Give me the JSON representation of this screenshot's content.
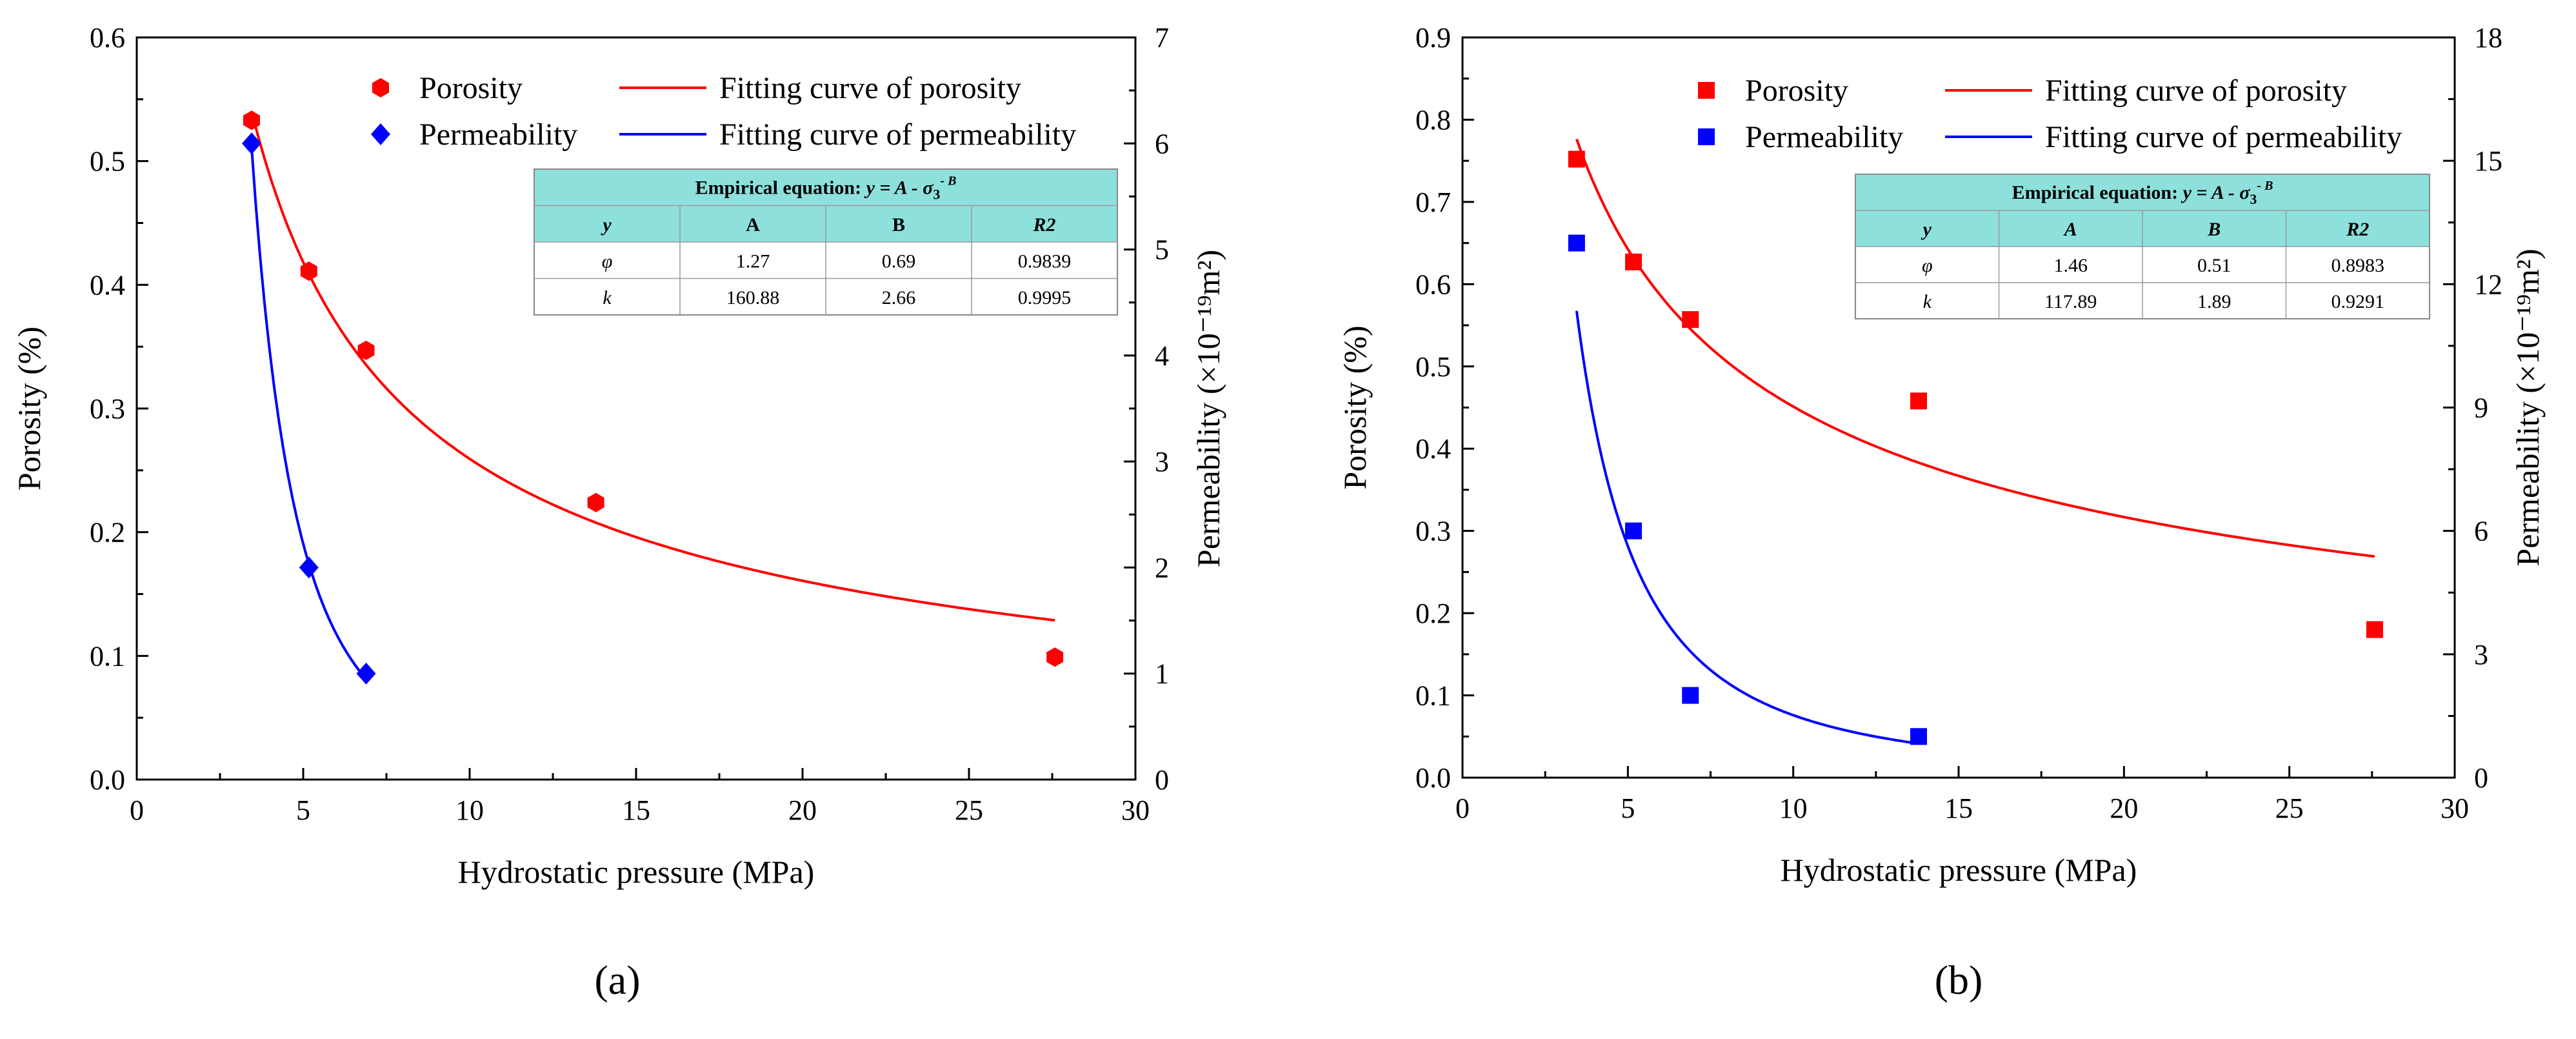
{
  "chart_data": [
    {
      "type": "scatter",
      "panel": "a",
      "panel_label": "(a)",
      "xlabel": "Hydrostatic pressure (MPa)",
      "ylabel": "Porosity (%)",
      "y2label": "Permeability (×10⁻¹⁹m²)",
      "xlim": [
        0,
        30
      ],
      "ylim": [
        0,
        0.6
      ],
      "y2lim": [
        0,
        7
      ],
      "xticks": [
        "0",
        "5",
        "10",
        "15",
        "20",
        "25",
        "30"
      ],
      "yticks": [
        "0.0",
        "0.1",
        "0.2",
        "0.3",
        "0.4",
        "0.5",
        "0.6"
      ],
      "y2ticks": [
        "0",
        "1",
        "2",
        "3",
        "4",
        "5",
        "6",
        "7"
      ],
      "legend": {
        "porosity_points": "Porosity",
        "permeability_points": "Permeability",
        "porosity_curve": "Fitting curve of porosity",
        "permeability_curve": "Fitting curve of permeability"
      },
      "colors": {
        "porosity": "#ff0000",
        "permeability": "#0000ff",
        "table_bg": "#8ee0dc"
      },
      "markers": {
        "porosity": "hexagon",
        "permeability": "diamond"
      },
      "series": [
        {
          "name": "Porosity",
          "axis": "left",
          "x": [
            3.45,
            5.17,
            6.89,
            13.79,
            27.58
          ],
          "y": [
            0.533,
            0.411,
            0.347,
            0.224,
            0.099
          ]
        },
        {
          "name": "Permeability",
          "axis": "right",
          "x": [
            3.45,
            5.17,
            6.89
          ],
          "y": [
            6.0,
            2.0,
            1.0
          ]
        }
      ],
      "fits": [
        {
          "name": "Fitting curve of porosity",
          "axis": "left",
          "A": 1.27,
          "B": 0.69,
          "x_range": [
            3.45,
            27.58
          ]
        },
        {
          "name": "Fitting curve of permeability",
          "axis": "right",
          "A": 160.88,
          "B": 2.66,
          "x_range": [
            3.45,
            6.89
          ]
        }
      ],
      "table": {
        "title_prefix": "Empirical equation: ",
        "title_eq": "y = A  -  σ",
        "title_sub": "3",
        "title_sup": "- B",
        "headers": [
          "y",
          "A",
          "B",
          "R2"
        ],
        "rows": [
          [
            "φ",
            "1.27",
            "0.69",
            "0.9839"
          ],
          [
            "k",
            "160.88",
            "2.66",
            "0.9995"
          ]
        ]
      }
    },
    {
      "type": "scatter",
      "panel": "b",
      "panel_label": "(b)",
      "xlabel": "Hydrostatic pressure (MPa)",
      "ylabel": "Porosity (%)",
      "y2label": "Permeability (×10⁻¹⁹m²)",
      "xlim": [
        0,
        30
      ],
      "ylim": [
        0,
        0.9
      ],
      "y2lim": [
        0,
        18
      ],
      "xticks": [
        "0",
        "5",
        "10",
        "15",
        "20",
        "25",
        "30"
      ],
      "yticks": [
        "0.0",
        "0.1",
        "0.2",
        "0.3",
        "0.4",
        "0.5",
        "0.6",
        "0.7",
        "0.8",
        "0.9"
      ],
      "y2ticks": [
        "0",
        "3",
        "6",
        "9",
        "12",
        "15",
        "18"
      ],
      "legend": {
        "porosity_points": "Porosity",
        "permeability_points": "Permeability",
        "porosity_curve": "Fitting curve of porosity",
        "permeability_curve": "Fitting curve of permeability"
      },
      "colors": {
        "porosity": "#ff0000",
        "permeability": "#0000ff",
        "table_bg": "#8ee0dc"
      },
      "markers": {
        "porosity": "square",
        "permeability": "square"
      },
      "series": [
        {
          "name": "Porosity",
          "axis": "left",
          "x": [
            3.45,
            5.17,
            6.89,
            13.79,
            27.58
          ],
          "y": [
            0.752,
            0.627,
            0.557,
            0.458,
            0.18
          ]
        },
        {
          "name": "Permeability",
          "axis": "right",
          "x": [
            3.45,
            5.17,
            6.89,
            13.79
          ],
          "y": [
            13.0,
            6.0,
            2.0,
            1.0
          ]
        }
      ],
      "fits": [
        {
          "name": "Fitting curve of porosity",
          "axis": "left",
          "A": 1.46,
          "B": 0.51,
          "x_range": [
            3.45,
            27.58
          ]
        },
        {
          "name": "Fitting curve of permeability",
          "axis": "right",
          "A": 117.89,
          "B": 1.89,
          "x_range": [
            3.45,
            13.79
          ]
        }
      ],
      "table": {
        "title_prefix": "Empirical equation: ",
        "title_eq": "y = A  -  σ",
        "title_sub": "3",
        "title_sup": "- B",
        "headers": [
          "y",
          "A",
          "B",
          "R2"
        ],
        "rows": [
          [
            "φ",
            "1.46",
            "0.51",
            "0.8983"
          ],
          [
            "k",
            "117.89",
            "1.89",
            "0.9291"
          ]
        ]
      }
    }
  ]
}
